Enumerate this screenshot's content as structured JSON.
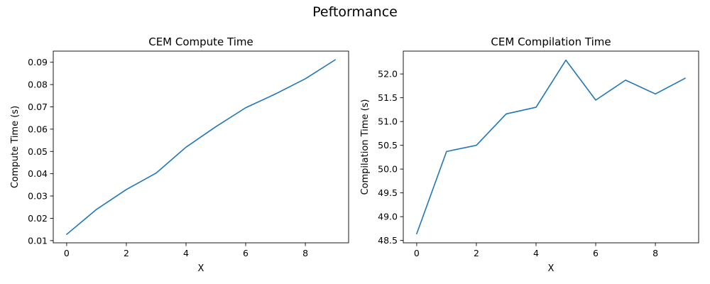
{
  "figure": {
    "suptitle": "Peftormance"
  },
  "chart_data": [
    {
      "type": "line",
      "title": "CEM Compute Time",
      "xlabel": "X",
      "ylabel": "Compute Time (s)",
      "xlim": [
        -0.45,
        9.45
      ],
      "ylim": [
        0.009,
        0.095
      ],
      "x_ticks": [
        0,
        2,
        4,
        6,
        8
      ],
      "x_tick_labels": [
        "0",
        "2",
        "4",
        "6",
        "8"
      ],
      "y_ticks": [
        0.01,
        0.02,
        0.03,
        0.04,
        0.05,
        0.06,
        0.07,
        0.08,
        0.09
      ],
      "y_tick_labels": [
        "0.01",
        "0.02",
        "0.03",
        "0.04",
        "0.05",
        "0.06",
        "0.07",
        "0.08",
        "0.09"
      ],
      "grid": false,
      "series": [
        {
          "color": "#1f77b4",
          "x": [
            0,
            1,
            2,
            3,
            4,
            5,
            6,
            7,
            8,
            9
          ],
          "y": [
            0.0128,
            0.024,
            0.0329,
            0.0403,
            0.0519,
            0.0611,
            0.0696,
            0.0758,
            0.0826,
            0.0911
          ]
        }
      ]
    },
    {
      "type": "line",
      "title": "CEM Compilation Time",
      "xlabel": "X",
      "ylabel": "Compilation Time (s)",
      "xlim": [
        -0.45,
        9.45
      ],
      "ylim": [
        48.45,
        52.48
      ],
      "x_ticks": [
        0,
        2,
        4,
        6,
        8
      ],
      "x_tick_labels": [
        "0",
        "2",
        "4",
        "6",
        "8"
      ],
      "y_ticks": [
        48.5,
        49.0,
        49.5,
        50.0,
        50.5,
        51.0,
        51.5,
        52.0
      ],
      "y_tick_labels": [
        "48.5",
        "49.0",
        "49.5",
        "50.0",
        "50.5",
        "51.0",
        "51.5",
        "52.0"
      ],
      "grid": false,
      "series": [
        {
          "color": "#1f77b4",
          "x": [
            0,
            1,
            2,
            3,
            4,
            5,
            6,
            7,
            8,
            9
          ],
          "y": [
            48.64,
            50.37,
            50.5,
            51.16,
            51.3,
            52.29,
            51.45,
            51.87,
            51.58,
            51.91
          ]
        }
      ]
    }
  ]
}
